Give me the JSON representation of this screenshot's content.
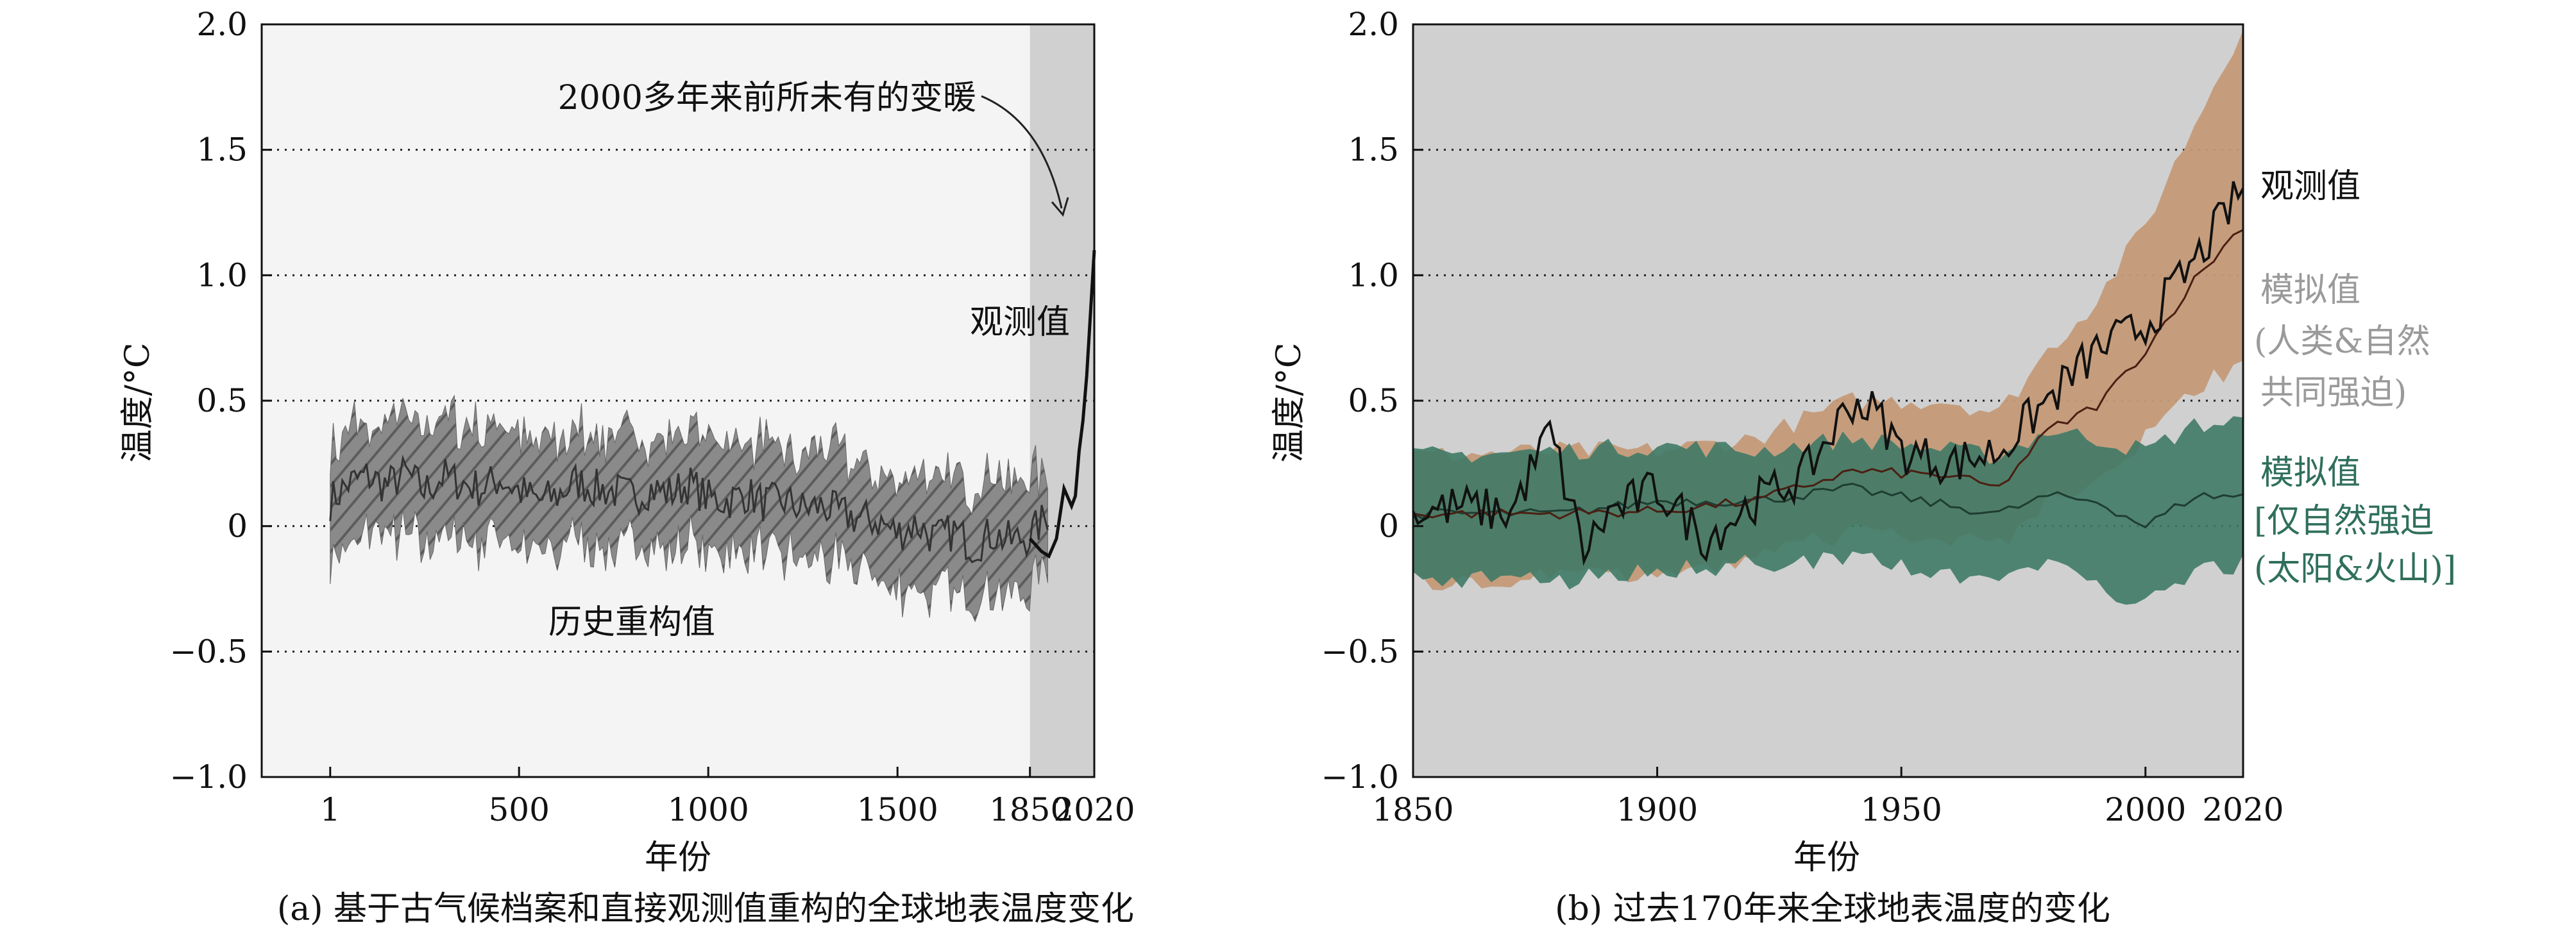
{
  "chart_data": [
    {
      "type": "line",
      "panel_caption": "(a) 基于古气候档案和直接观测值重构的全球地表温度变化",
      "xlabel": "年份",
      "ylabel": "温度/°C",
      "ylim": [
        -1.0,
        2.0
      ],
      "xlim": [
        -180,
        2020
      ],
      "x_ticks": [
        1,
        500,
        1000,
        1500,
        1850,
        2020
      ],
      "y_ticks": [
        -1.0,
        -0.5,
        0,
        0.5,
        1.0,
        1.5,
        2.0
      ],
      "y_tick_labels": [
        "−1.0",
        "−0.5",
        "0",
        "0.5",
        "1.0",
        "1.5",
        "2.0"
      ],
      "grid": "dotted horizontal at 0.5 intervals",
      "shaded_x_range": [
        1850,
        2020
      ],
      "colors": {
        "reconstruction_band": "#7d7d7d",
        "reconstruction_line": "#333333",
        "observed_line": "#111111",
        "shade": "#d0d0d0"
      },
      "series": [
        {
          "name": "历史重构值",
          "x": [
            1,
            50,
            100,
            150,
            200,
            250,
            300,
            350,
            400,
            450,
            500,
            550,
            600,
            650,
            700,
            750,
            800,
            850,
            900,
            950,
            1000,
            1050,
            1100,
            1150,
            1200,
            1250,
            1300,
            1350,
            1400,
            1450,
            1500,
            1550,
            1600,
            1650,
            1700,
            1750,
            1800,
            1850,
            1900
          ],
          "y": [
            0.1,
            0.17,
            0.2,
            0.16,
            0.21,
            0.14,
            0.2,
            0.17,
            0.15,
            0.19,
            0.14,
            0.1,
            0.12,
            0.18,
            0.15,
            0.14,
            0.12,
            0.15,
            0.13,
            0.17,
            0.11,
            0.1,
            0.13,
            0.09,
            0.1,
            0.07,
            0.08,
            0.05,
            0.03,
            0.02,
            -0.03,
            0.01,
            -0.05,
            -0.02,
            -0.08,
            -0.03,
            -0.06,
            -0.04,
            0.05
          ],
          "band_half_width": 0.22
        },
        {
          "name": "观测值",
          "x": [
            1850,
            1880,
            1900,
            1920,
            1940,
            1960,
            1970,
            1980,
            1990,
            2000,
            2010,
            2020
          ],
          "y": [
            -0.05,
            -0.1,
            -0.12,
            -0.05,
            0.15,
            0.08,
            0.12,
            0.3,
            0.42,
            0.6,
            0.85,
            1.1
          ]
        }
      ],
      "annotations": [
        "2000多年来前所未有的变暖",
        "观测值",
        "历史重构值"
      ]
    },
    {
      "type": "line",
      "panel_caption": "(b) 过去170年来全球地表温度的变化",
      "xlabel": "年份",
      "ylabel": "温度/°C",
      "ylim": [
        -1.0,
        2.0
      ],
      "xlim": [
        1850,
        2020
      ],
      "x_ticks": [
        1850,
        1900,
        1950,
        2000,
        2020
      ],
      "y_ticks": [
        -1.0,
        -0.5,
        0,
        0.5,
        1.0,
        1.5,
        2.0
      ],
      "y_tick_labels": [
        "−1.0",
        "−0.5",
        "0",
        "0.5",
        "1.0",
        "1.5",
        "2.0"
      ],
      "grid": "dotted horizontal at 0.5 intervals",
      "colors": {
        "background": "#d0d0d0",
        "human_natural": "#c49a78",
        "natural_only": "#3f7a66",
        "overlap": "#6f7a4c",
        "observed": "#111111"
      },
      "series": [
        {
          "name": "观测值",
          "x": [
            1850,
            1860,
            1870,
            1878,
            1885,
            1890,
            1900,
            1910,
            1920,
            1930,
            1940,
            1945,
            1950,
            1960,
            1970,
            1980,
            1990,
            2000,
            2010,
            2020
          ],
          "y": [
            0.05,
            0.08,
            0.05,
            0.38,
            -0.1,
            0.05,
            0.15,
            -0.05,
            0.1,
            0.2,
            0.5,
            0.45,
            0.3,
            0.25,
            0.3,
            0.5,
            0.7,
            0.8,
            1.05,
            1.35
          ]
        },
        {
          "name": "模拟值(人类&自然共同强迫)",
          "x": [
            1850,
            1880,
            1900,
            1920,
            1940,
            1960,
            1970,
            1980,
            1990,
            2000,
            2010,
            2020
          ],
          "y": [
            0.05,
            0.05,
            0.06,
            0.1,
            0.22,
            0.2,
            0.15,
            0.38,
            0.48,
            0.7,
            0.98,
            1.2
          ],
          "band_low": [
            -0.22,
            -0.2,
            -0.18,
            -0.12,
            -0.02,
            -0.05,
            -0.08,
            0.1,
            0.2,
            0.35,
            0.55,
            0.65
          ],
          "band_high": [
            0.28,
            0.3,
            0.3,
            0.35,
            0.5,
            0.5,
            0.45,
            0.7,
            0.9,
            1.2,
            1.6,
            2.0
          ]
        },
        {
          "name": "模拟值[仅自然强迫(太阳&火山)]",
          "x": [
            1850,
            1880,
            1900,
            1920,
            1940,
            1960,
            1970,
            1980,
            1990,
            2000,
            2010,
            2020
          ],
          "y": [
            0.05,
            0.05,
            0.1,
            0.1,
            0.15,
            0.08,
            0.05,
            0.12,
            0.1,
            0.0,
            0.12,
            0.12
          ],
          "band_low": [
            -0.2,
            -0.22,
            -0.18,
            -0.15,
            -0.12,
            -0.2,
            -0.22,
            -0.15,
            -0.25,
            -0.3,
            -0.18,
            -0.15
          ],
          "band_high": [
            0.28,
            0.3,
            0.32,
            0.3,
            0.35,
            0.3,
            0.28,
            0.38,
            0.35,
            0.3,
            0.4,
            0.42
          ]
        }
      ],
      "legend_labels": {
        "observed": "观测值",
        "human_natural": [
          "模拟值",
          "(人类&自然",
          "共同强迫)"
        ],
        "natural_only": [
          "模拟值",
          "[仅自然强迫",
          "(太阳&火山)]"
        ]
      }
    }
  ]
}
